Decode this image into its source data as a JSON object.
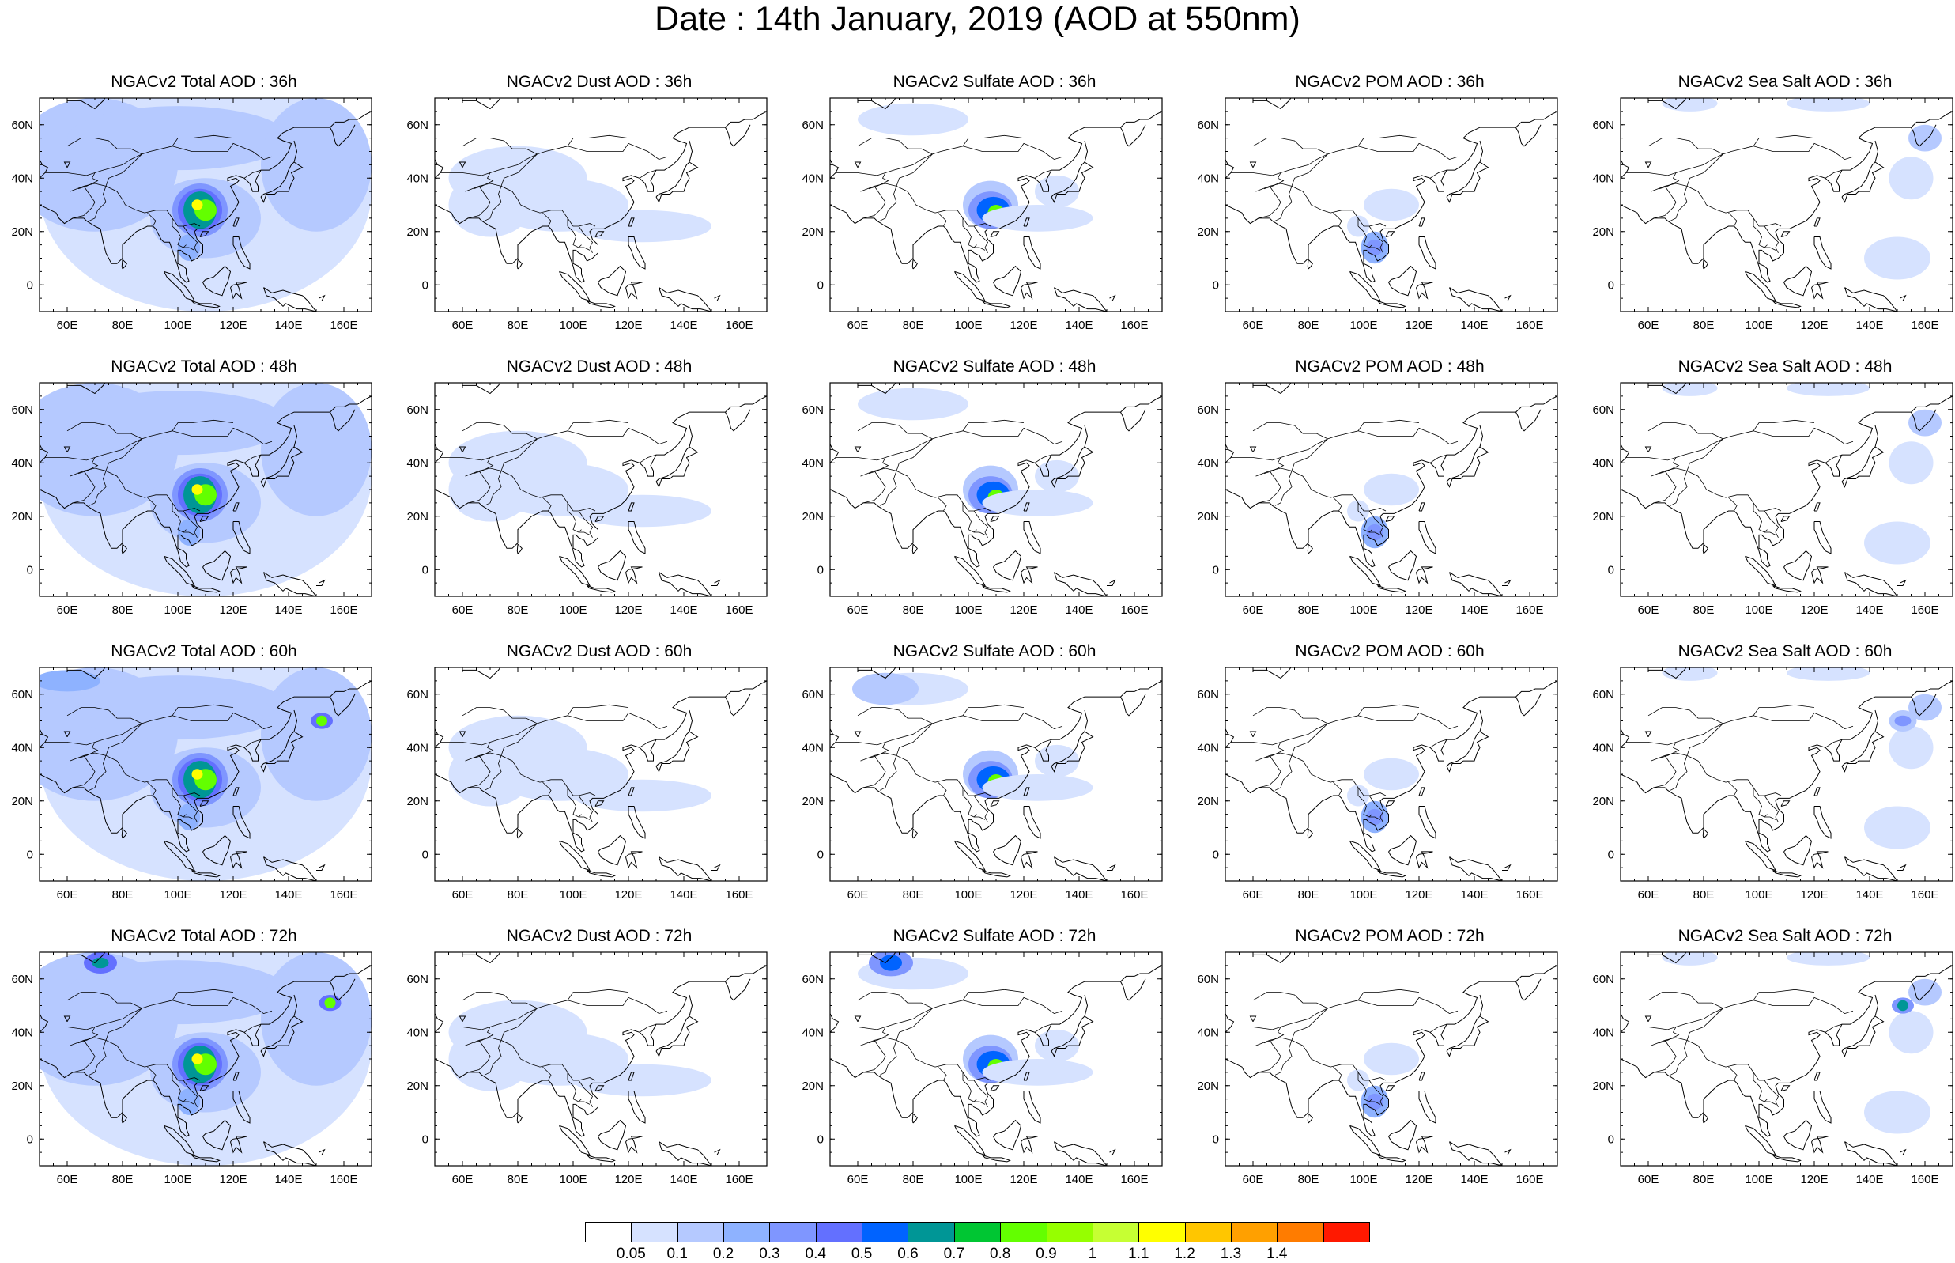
{
  "title": "Date : 14th January, 2019 (AOD at 550nm)",
  "lon_ticks": [
    "60E",
    "80E",
    "100E",
    "120E",
    "140E",
    "160E"
  ],
  "lat_ticks": [
    "60N",
    "40N",
    "20N",
    "0"
  ],
  "colorbar": {
    "labels": [
      "0.05",
      "0.1",
      "0.2",
      "0.3",
      "0.4",
      "0.5",
      "0.6",
      "0.7",
      "0.8",
      "0.9",
      "1",
      "1.1",
      "1.2",
      "1.3",
      "1.4"
    ],
    "colors": [
      "#ffffff",
      "#d6e2ff",
      "#b5c9ff",
      "#8eb2ff",
      "#7f96ff",
      "#6370ff",
      "#0063ff",
      "#009696",
      "#00c633",
      "#63ff00",
      "#96ff00",
      "#c6ff33",
      "#ffff00",
      "#ffc600",
      "#ffa000",
      "#ff7c00",
      "#ff1900"
    ]
  },
  "panels": [
    {
      "title": "NGACv2 Total AOD : 36h",
      "type": "total",
      "row": 0,
      "col": 0
    },
    {
      "title": "NGACv2 Dust AOD : 36h",
      "type": "dust",
      "row": 0,
      "col": 1
    },
    {
      "title": "NGACv2 Sulfate AOD : 36h",
      "type": "sulfate",
      "row": 0,
      "col": 2
    },
    {
      "title": "NGACv2 POM AOD : 36h",
      "type": "pom",
      "row": 0,
      "col": 3
    },
    {
      "title": "NGACv2 Sea Salt AOD : 36h",
      "type": "seasalt",
      "row": 0,
      "col": 4
    },
    {
      "title": "NGACv2 Total AOD : 48h",
      "type": "total",
      "row": 1,
      "col": 0
    },
    {
      "title": "NGACv2 Dust AOD : 48h",
      "type": "dust",
      "row": 1,
      "col": 1
    },
    {
      "title": "NGACv2 Sulfate AOD : 48h",
      "type": "sulfate",
      "row": 1,
      "col": 2
    },
    {
      "title": "NGACv2 POM AOD : 48h",
      "type": "pom",
      "row": 1,
      "col": 3
    },
    {
      "title": "NGACv2 Sea Salt AOD : 48h",
      "type": "seasalt",
      "row": 1,
      "col": 4
    },
    {
      "title": "NGACv2 Total AOD : 60h",
      "type": "total",
      "row": 2,
      "col": 0
    },
    {
      "title": "NGACv2 Dust AOD : 60h",
      "type": "dust",
      "row": 2,
      "col": 1
    },
    {
      "title": "NGACv2 Sulfate AOD : 60h",
      "type": "sulfate",
      "row": 2,
      "col": 2
    },
    {
      "title": "NGACv2 POM AOD : 60h",
      "type": "pom",
      "row": 2,
      "col": 3
    },
    {
      "title": "NGACv2 Sea Salt AOD : 60h",
      "type": "seasalt",
      "row": 2,
      "col": 4
    },
    {
      "title": "NGACv2 Total AOD : 72h",
      "type": "total",
      "row": 3,
      "col": 0
    },
    {
      "title": "NGACv2 Dust AOD : 72h",
      "type": "dust",
      "row": 3,
      "col": 1
    },
    {
      "title": "NGACv2 Sulfate AOD : 72h",
      "type": "sulfate",
      "row": 3,
      "col": 2
    },
    {
      "title": "NGACv2 POM AOD : 72h",
      "type": "pom",
      "row": 3,
      "col": 3
    },
    {
      "title": "NGACv2 Sea Salt  AOD : 72h",
      "type": "seasalt",
      "row": 3,
      "col": 4
    }
  ]
}
